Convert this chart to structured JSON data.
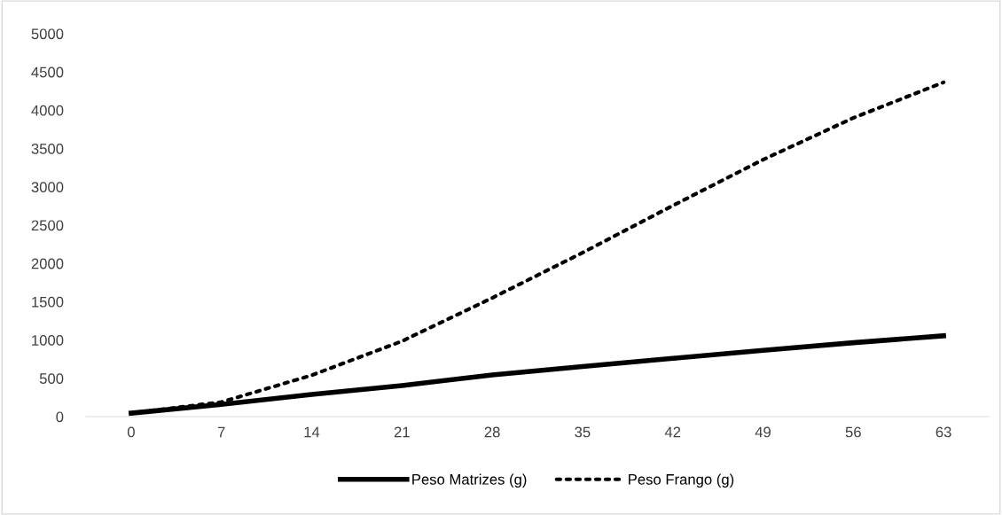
{
  "chart_data": {
    "type": "line",
    "categories": [
      "0",
      "7",
      "14",
      "21",
      "28",
      "35",
      "42",
      "49",
      "56",
      "63"
    ],
    "series": [
      {
        "name": "Peso Matrizes (g)",
        "color": "#000000",
        "line_style": "solid",
        "values": [
          45,
          160,
          290,
          405,
          544,
          655,
          760,
          865,
          965,
          1055
        ]
      },
      {
        "name": "Peso Frango (g)",
        "color": "#000000",
        "line_style": "dotted",
        "values": [
          45,
          190,
          540,
          985,
          1550,
          2140,
          2755,
          3355,
          3900,
          4365
        ]
      }
    ],
    "ylim": [
      0,
      5000
    ],
    "yticks": [
      0,
      500,
      1000,
      1500,
      2000,
      2500,
      3000,
      3500,
      4000,
      4500,
      5000
    ],
    "grid": false,
    "legend": "bottom",
    "marker": "none"
  }
}
